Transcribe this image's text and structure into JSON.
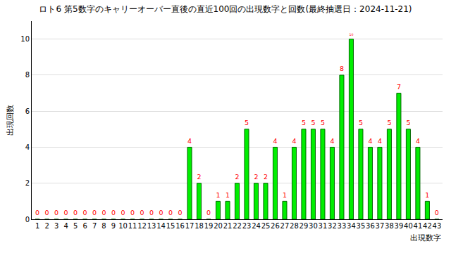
{
  "chart_data": {
    "type": "bar",
    "title": "ロト6 第5数字のキャリーオーバー直後の直近100回の出現数字と回数(最終抽選日：2024-11-21)",
    "x_label": "出現数字",
    "y_label": "出現回数",
    "categories": [
      "1",
      "2",
      "3",
      "4",
      "5",
      "6",
      "7",
      "8",
      "9",
      "10",
      "11",
      "12",
      "13",
      "14",
      "15",
      "16",
      "17",
      "18",
      "19",
      "20",
      "21",
      "22",
      "23",
      "24",
      "25",
      "26",
      "27",
      "28",
      "29",
      "30",
      "31",
      "32",
      "33",
      "34",
      "35",
      "36",
      "37",
      "38",
      "39",
      "40",
      "41",
      "42",
      "43"
    ],
    "values": [
      0,
      0,
      0,
      0,
      0,
      0,
      0,
      0,
      0,
      0,
      0,
      0,
      0,
      0,
      0,
      0,
      4,
      2,
      0,
      1,
      1,
      2,
      5,
      2,
      2,
      4,
      1,
      4,
      5,
      5,
      5,
      4,
      8,
      10,
      5,
      4,
      4,
      5,
      7,
      5,
      4,
      1,
      0
    ],
    "color": "#00ee00",
    "ylim": [
      0,
      11
    ],
    "yticks": [
      0,
      2,
      4,
      6,
      8,
      10
    ],
    "grid": true,
    "data_labels": true
  }
}
